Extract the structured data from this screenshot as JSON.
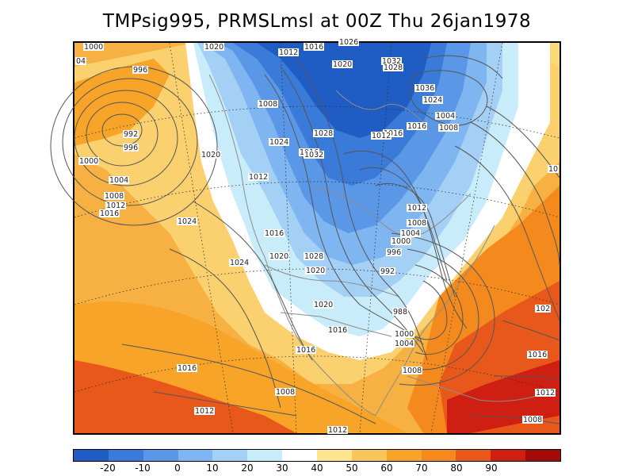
{
  "title": "TMPsig995, PRMSLmsl at 00Z Thu 26jan1978",
  "map": {
    "type": "weather-map",
    "fields": [
      "TMPsig995",
      "PRMSLmsl"
    ],
    "valid_time": "00Z Thu 26jan1978",
    "isobar_labels": [
      "1000",
      "04",
      "996",
      "1020",
      "1012",
      "1016",
      "1020",
      "1026",
      "1032",
      "1028",
      "1036",
      "1024",
      "1004",
      "1008",
      "1016",
      "1008",
      "1024",
      "992",
      "996",
      "1016",
      "1028",
      "1016",
      "1012",
      "1000",
      "1020",
      "1032",
      "1004",
      "1012",
      "1008",
      "1012",
      "1016",
      "1024",
      "1012",
      "1008",
      "1004",
      "1016",
      "1000",
      "1020",
      "1028",
      "996",
      "1020",
      "1024",
      "992",
      "1020",
      "988",
      "1016",
      "1000",
      "1004",
      "1016",
      "1016",
      "1008",
      "1016",
      "1008",
      "1012",
      "1012",
      "1008",
      "1012",
      "102",
      "10"
    ],
    "colors": {
      "water_bg": "#f7b142",
      "contour_line": "#555555",
      "boundary_line": "#8c8c8c"
    }
  },
  "colorbar": {
    "colors": [
      "#1f5cc4",
      "#3a7ad8",
      "#5a97e6",
      "#7fb5f0",
      "#a5d0f6",
      "#c9ecfa",
      "#ffffff",
      "#fde48e",
      "#f8c55a",
      "#f7a428",
      "#f48a1e",
      "#e8581a",
      "#cf1f12",
      "#a30a0a"
    ],
    "tick_labels": [
      "-20",
      "-10",
      "0",
      "10",
      "20",
      "30",
      "40",
      "50",
      "60",
      "70",
      "80",
      "90"
    ]
  }
}
